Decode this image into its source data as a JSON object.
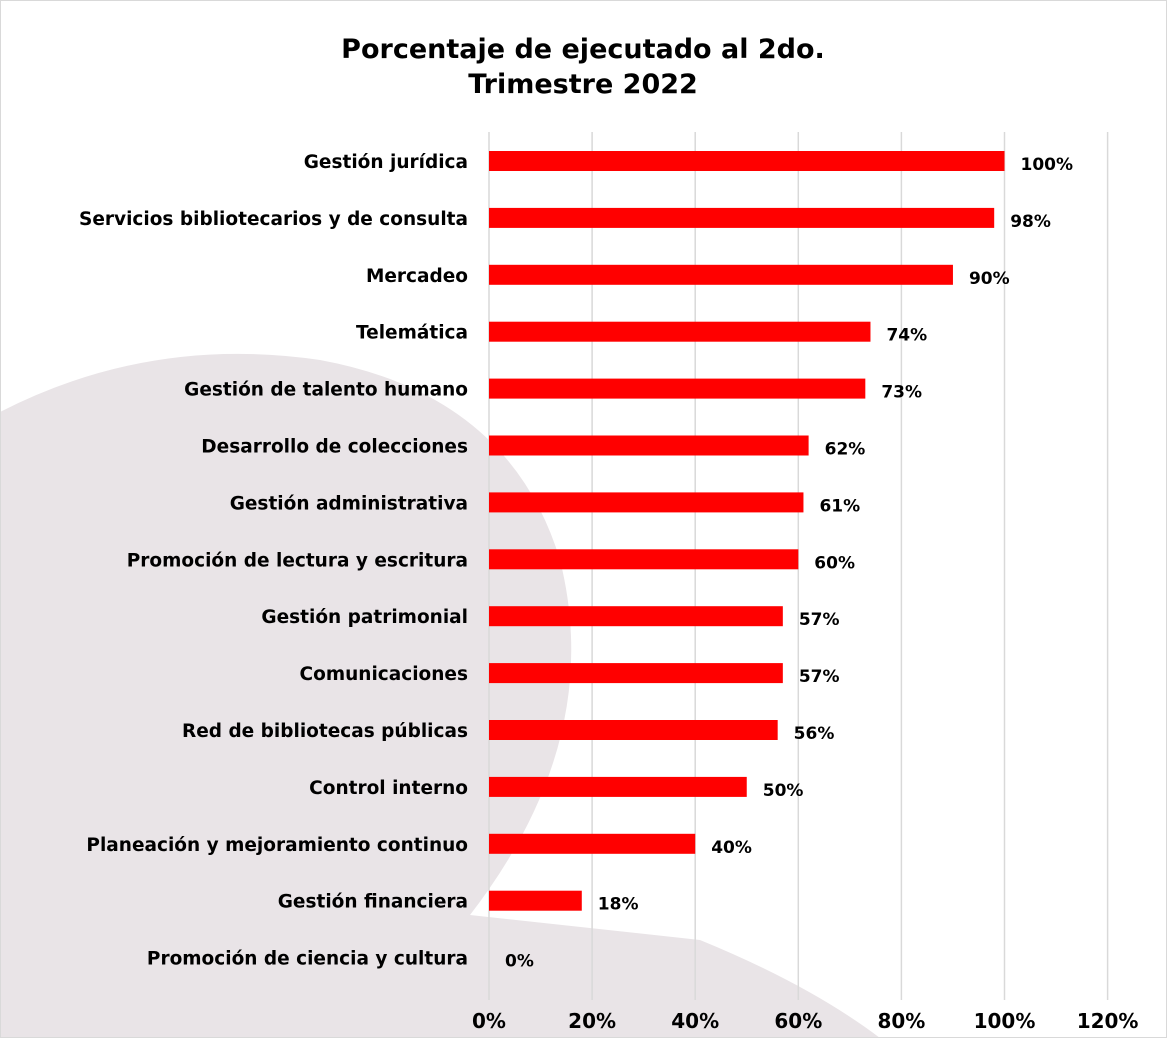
{
  "chart_data": {
    "type": "bar",
    "orientation": "horizontal",
    "title_line1": "Porcentaje de ejecutado al 2do.",
    "title_line2": "Trimestre 2022",
    "categories": [
      "Gestión jurídica",
      "Servicios bibliotecarios y de consulta",
      "Mercadeo",
      "Telemática",
      "Gestión de talento humano",
      "Desarrollo de colecciones",
      "Gestión administrativa",
      "Promoción de lectura y escritura",
      "Gestión patrimonial",
      "Comunicaciones",
      "Red de bibliotecas públicas",
      "Control interno",
      "Planeación y mejoramiento continuo",
      "Gestión financiera",
      "Promoción de ciencia y cultura"
    ],
    "values": [
      100,
      98,
      90,
      74,
      73,
      62,
      61,
      60,
      57,
      57,
      56,
      50,
      40,
      18,
      0
    ],
    "value_labels": [
      "100%",
      "98%",
      "90%",
      "74%",
      "73%",
      "62%",
      "61%",
      "60%",
      "57%",
      "57%",
      "56%",
      "50%",
      "40%",
      "18%",
      "0%"
    ],
    "x_ticks": [
      "0%",
      "20%",
      "40%",
      "60%",
      "80%",
      "100%",
      "120%"
    ],
    "xlim": [
      0,
      120
    ],
    "grid": "vertical",
    "legend": "none",
    "bar_color": "#FF0000",
    "background_shape_color": "#E9E4E7"
  }
}
